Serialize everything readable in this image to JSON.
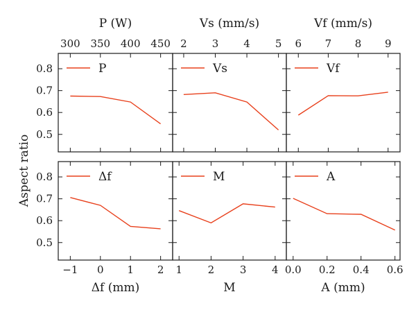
{
  "figure": {
    "ylabel": "Aspect ratio"
  },
  "chart_data": [
    {
      "type": "line",
      "row": 0,
      "col": 0,
      "x": [
        300,
        350,
        400,
        450
      ],
      "series": [
        {
          "name": "P",
          "values": [
            0.675,
            0.673,
            0.648,
            0.548
          ]
        }
      ],
      "xlabel": "P (W)",
      "xlabel_position": "top",
      "xticks": [
        "300",
        "350",
        "400",
        "450"
      ],
      "xlim": [
        280,
        470
      ],
      "ylim": [
        0.42,
        0.87
      ],
      "yticks": [
        "0.5",
        "0.6",
        "0.7",
        "0.8"
      ],
      "legend": "top-left",
      "color": "#e8401c"
    },
    {
      "type": "line",
      "row": 0,
      "col": 1,
      "x": [
        2,
        3,
        4,
        5
      ],
      "series": [
        {
          "name": "Vs",
          "values": [
            0.682,
            0.69,
            0.648,
            0.52
          ]
        }
      ],
      "xlabel": "Vs (mm/s)",
      "xlabel_position": "top",
      "xticks": [
        "2",
        "3",
        "4",
        "5"
      ],
      "xlim": [
        1.65,
        5.25
      ],
      "ylim": [
        0.42,
        0.87
      ],
      "legend": "top-left",
      "color": "#e8401c"
    },
    {
      "type": "line",
      "row": 0,
      "col": 2,
      "x": [
        6,
        7,
        8,
        9
      ],
      "series": [
        {
          "name": "Vf",
          "values": [
            0.588,
            0.677,
            0.676,
            0.693
          ]
        }
      ],
      "xlabel": "Vf (mm/s)",
      "xlabel_position": "top",
      "xticks": [
        "6",
        "7",
        "8",
        "9"
      ],
      "xlim": [
        5.6,
        9.4
      ],
      "ylim": [
        0.42,
        0.87
      ],
      "legend": "top-left",
      "color": "#e8401c"
    },
    {
      "type": "line",
      "row": 1,
      "col": 0,
      "x": [
        -1,
        0,
        1,
        2
      ],
      "series": [
        {
          "name": "Δf",
          "values": [
            0.706,
            0.67,
            0.574,
            0.563
          ]
        }
      ],
      "xlabel": "Δf (mm)",
      "xlabel_position": "bottom",
      "xticks": [
        "−1",
        "0",
        "1",
        "2"
      ],
      "xlim": [
        -1.4,
        2.4
      ],
      "ylim": [
        0.42,
        0.87
      ],
      "yticks": [
        "0.5",
        "0.6",
        "0.7",
        "0.8"
      ],
      "legend": "top-left",
      "color": "#e8401c"
    },
    {
      "type": "line",
      "row": 1,
      "col": 1,
      "x": [
        1,
        2,
        3,
        4
      ],
      "series": [
        {
          "name": "M",
          "values": [
            0.646,
            0.59,
            0.677,
            0.662
          ]
        }
      ],
      "xlabel": "M",
      "xlabel_position": "bottom",
      "xticks": [
        "1",
        "2",
        "3",
        "4"
      ],
      "xlim": [
        0.8,
        4.35
      ],
      "ylim": [
        0.42,
        0.87
      ],
      "legend": "top-left",
      "color": "#e8401c"
    },
    {
      "type": "line",
      "row": 1,
      "col": 2,
      "x": [
        0.0,
        0.2,
        0.4,
        0.6
      ],
      "series": [
        {
          "name": "A",
          "values": [
            0.702,
            0.632,
            0.629,
            0.557
          ]
        }
      ],
      "xlabel": "A (mm)",
      "xlabel_position": "bottom",
      "xticks": [
        "0.0",
        "0.2",
        "0.4",
        "0.6"
      ],
      "xlim": [
        -0.04,
        0.63
      ],
      "ylim": [
        0.42,
        0.87
      ],
      "legend": "top-left",
      "color": "#e8401c"
    }
  ]
}
